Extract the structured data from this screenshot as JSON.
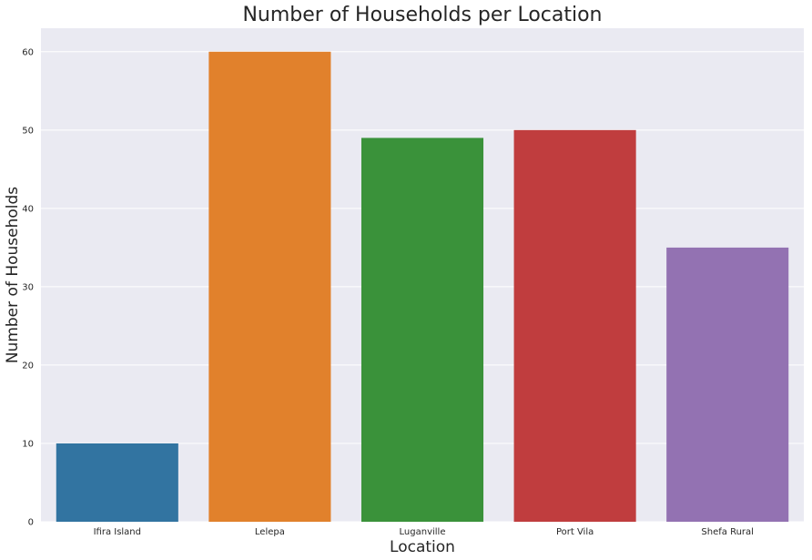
{
  "chart_data": {
    "type": "bar",
    "title": "Number of Households per Location",
    "xlabel": "Location",
    "ylabel": "Number of Households",
    "categories": [
      "Ifira Island",
      "Lelepa",
      "Luganville",
      "Port Vila",
      "Shefa Rural"
    ],
    "values": [
      10,
      60,
      49,
      50,
      35
    ],
    "colors": [
      "#3274a1",
      "#e1812c",
      "#3a923a",
      "#c03d3e",
      "#9372b2"
    ],
    "ylim": [
      0,
      63
    ],
    "yticks": [
      0,
      10,
      20,
      30,
      40,
      50,
      60
    ],
    "grid": true,
    "background": "#eaeaf2",
    "legend": "none"
  }
}
